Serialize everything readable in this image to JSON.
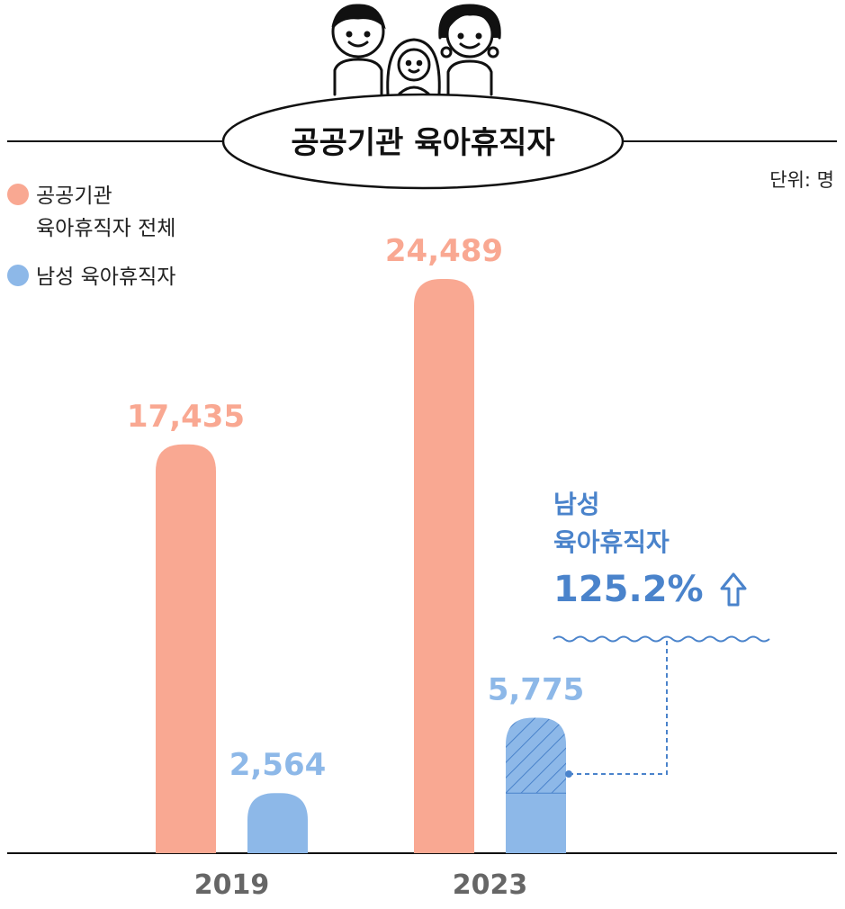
{
  "title": "공공기관 육아휴직자",
  "unit": "단위: 명",
  "legend": [
    {
      "label": "공공기관\n육아휴직자 전체",
      "color": "#f9a892"
    },
    {
      "label": "남성 육아휴직자",
      "color": "#8db8e8"
    }
  ],
  "callout": {
    "line1": "남성",
    "line2": "육아휴직자",
    "percent": "125.2%"
  },
  "colors": {
    "total": "#f9a892",
    "male": "#8db8e8",
    "callout": "#4a83cb",
    "axis_label": "#666666"
  },
  "chart_data": {
    "type": "bar",
    "categories": [
      "2019",
      "2023"
    ],
    "series": [
      {
        "name": "공공기관 육아휴직자 전체",
        "values": [
          17435,
          24489
        ],
        "labels": [
          "17,435",
          "24,489"
        ]
      },
      {
        "name": "남성 육아휴직자",
        "values": [
          2564,
          5775
        ],
        "labels": [
          "2,564",
          "5,775"
        ]
      }
    ],
    "title": "공공기관 육아휴직자",
    "ylim": [
      0,
      28000
    ],
    "annotation": "남성 육아휴직자 125.2%",
    "legend": "top-left"
  }
}
